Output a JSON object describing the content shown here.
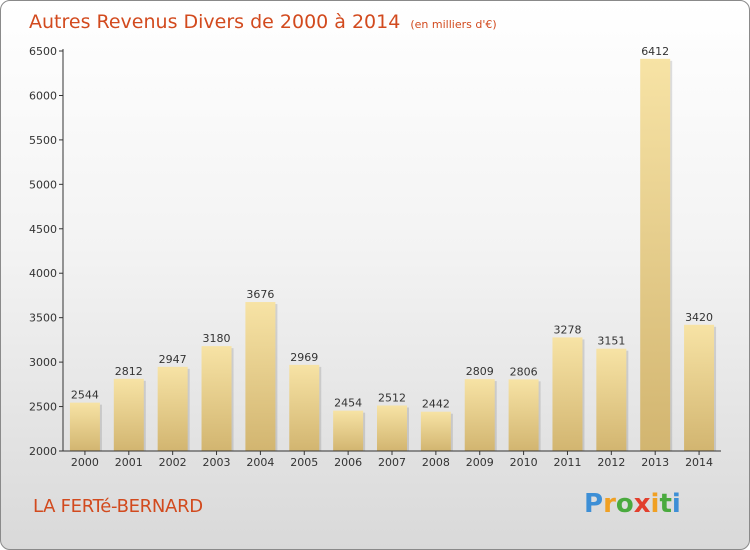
{
  "page": {
    "title": "Autres Revenus Divers de 2000 à 2014",
    "unit_note": "(en milliers d'€)",
    "location": "LA FERTé-BERNARD",
    "logo": {
      "p": "P",
      "r": "r",
      "o": "o",
      "x": "x",
      "i1": "i",
      "t": "t",
      "i2": "i"
    }
  },
  "colors": {
    "title": "#d24a1e",
    "bar_light": "#f7e3a5",
    "bar_dark": "#d2b570",
    "axis": "#333333"
  },
  "chart_data": {
    "type": "bar",
    "categories": [
      "2000",
      "2001",
      "2002",
      "2003",
      "2004",
      "2005",
      "2006",
      "2007",
      "2008",
      "2009",
      "2010",
      "2011",
      "2012",
      "2013",
      "2014"
    ],
    "values": [
      2544,
      2812,
      2947,
      3180,
      3676,
      2969,
      2454,
      2512,
      2442,
      2809,
      2806,
      3278,
      3151,
      6412,
      3420
    ],
    "title": "Autres Revenus Divers de 2000 à 2014",
    "subtitle": "(en milliers d'€)",
    "xlabel": "",
    "ylabel": "",
    "ylim": [
      2000,
      6500
    ],
    "yticks": [
      2000,
      2500,
      3000,
      3500,
      4000,
      4500,
      5000,
      5500,
      6000,
      6500
    ],
    "grid": false,
    "data_labels": true
  }
}
